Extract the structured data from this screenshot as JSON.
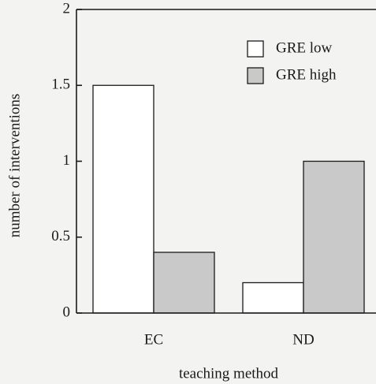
{
  "chart_data": {
    "type": "bar",
    "xlabel": "teaching method",
    "ylabel": "number of interventions",
    "categories": [
      "EC",
      "ND"
    ],
    "series": [
      {
        "name": "GRE low",
        "color": "#ffffff",
        "values": [
          1.5,
          0.2
        ]
      },
      {
        "name": "GRE high",
        "color": "#c9c9c9",
        "values": [
          0.4,
          1.0
        ]
      }
    ],
    "ylim": [
      0,
      2
    ],
    "yticks": [
      0,
      0.5,
      1,
      1.5,
      2
    ],
    "grid": false,
    "legend": "upper right"
  }
}
